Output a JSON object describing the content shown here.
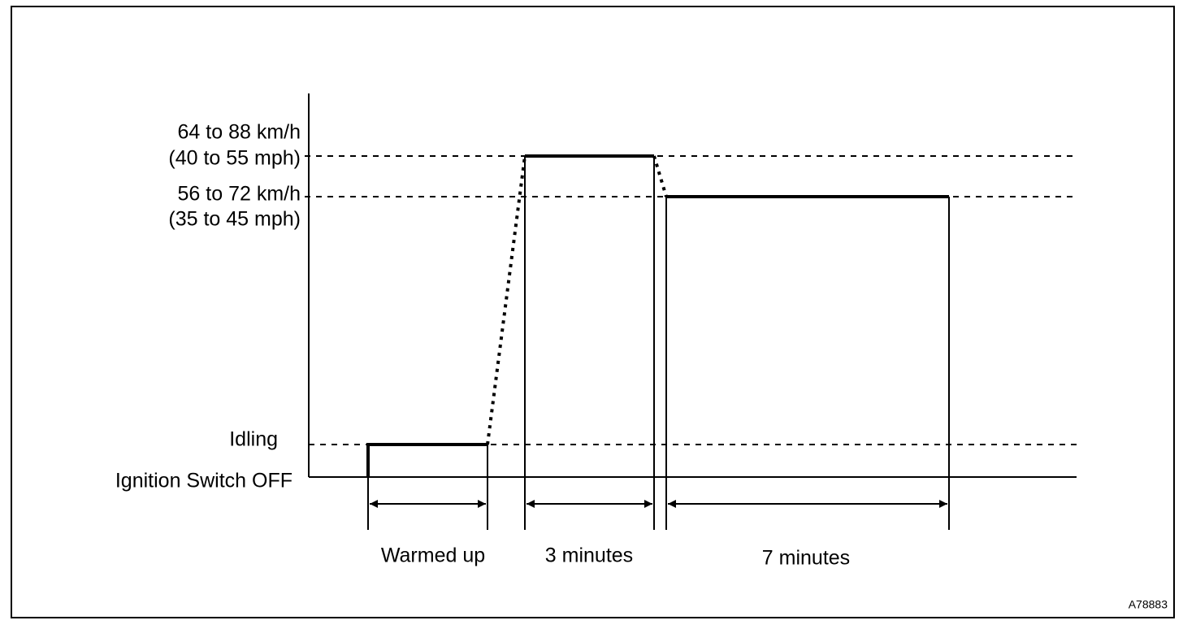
{
  "levels": [
    {
      "label": "64 to 88 km/h",
      "sublabel": "(40 to 55 mph)"
    },
    {
      "label": "56 to 72 km/h",
      "sublabel": "(35 to 45 mph)"
    },
    {
      "label": "Idling"
    },
    {
      "label": "Ignition Switch OFF"
    }
  ],
  "phases": [
    {
      "label": "Warmed up"
    },
    {
      "label": "3 minutes"
    },
    {
      "label": "7 minutes"
    }
  ],
  "figure_id": "A78883"
}
